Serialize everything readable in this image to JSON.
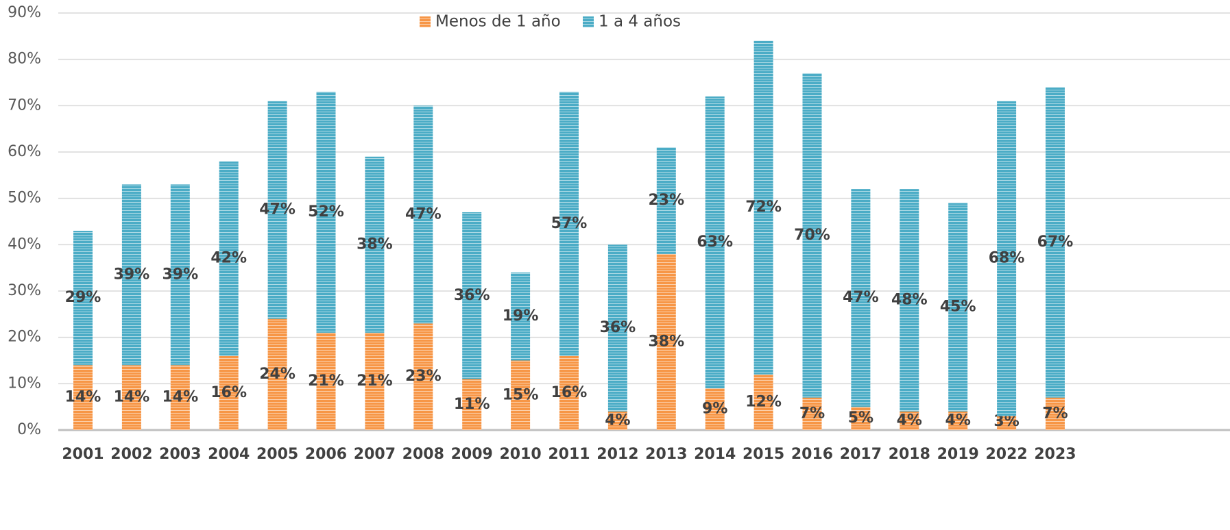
{
  "chart_data": {
    "type": "stacked_bar",
    "categories": [
      "2001",
      "2002",
      "2003",
      "2004",
      "2005",
      "2006",
      "2007",
      "2008",
      "2009",
      "2010",
      "2011",
      "2012",
      "2013",
      "2014",
      "2015",
      "2016",
      "2017",
      "2018",
      "2019",
      "2022",
      "2023"
    ],
    "series": [
      {
        "name": "Menos de 1 año",
        "color": "#f79646",
        "values": [
          14,
          14,
          14,
          16,
          24,
          21,
          21,
          23,
          11,
          15,
          16,
          4,
          38,
          9,
          12,
          7,
          5,
          4,
          4,
          3,
          7
        ],
        "value_labels": [
          "14%",
          "14%",
          "14%",
          "16%",
          "24%",
          "21%",
          "21%",
          "23%",
          "11%",
          "15%",
          "16%",
          "4%",
          "38%",
          "9%",
          "12%",
          "7%",
          "5%",
          "4%",
          "4%",
          "3%",
          "7%"
        ]
      },
      {
        "name": "1 a 4 años",
        "color": "#4bacc6",
        "values": [
          29,
          39,
          39,
          42,
          47,
          52,
          38,
          47,
          36,
          19,
          57,
          36,
          23,
          63,
          72,
          70,
          47,
          48,
          45,
          68,
          67
        ],
        "value_labels": [
          "29%",
          "39%",
          "39%",
          "42%",
          "47%",
          "52%",
          "38%",
          "47%",
          "36%",
          "19%",
          "57%",
          "36%",
          "23%",
          "63%",
          "72%",
          "70%",
          "47%",
          "48%",
          "45%",
          "68%",
          "67%"
        ]
      }
    ],
    "ylim": [
      0,
      90
    ],
    "yticks": [
      {
        "value": 0,
        "label": "0%"
      },
      {
        "value": 10,
        "label": "10%"
      },
      {
        "value": 20,
        "label": "20%"
      },
      {
        "value": 30,
        "label": "30%"
      },
      {
        "value": 40,
        "label": "40%"
      },
      {
        "value": 50,
        "label": "50%"
      },
      {
        "value": 60,
        "label": "60%"
      },
      {
        "value": 70,
        "label": "70%"
      },
      {
        "value": 80,
        "label": "80%"
      },
      {
        "value": 90,
        "label": "90%"
      }
    ],
    "grid": true,
    "legend": "top"
  }
}
